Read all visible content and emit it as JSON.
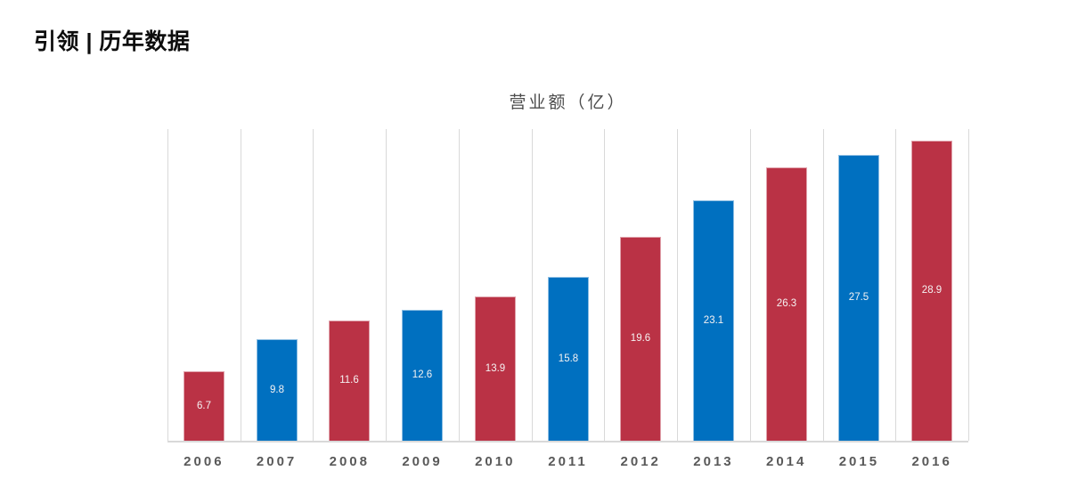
{
  "header": {
    "title": "引领 | 历年数据"
  },
  "chart_data": {
    "type": "bar",
    "title": "营业额（亿）",
    "categories": [
      "2006",
      "2007",
      "2008",
      "2009",
      "2010",
      "2011",
      "2012",
      "2013",
      "2014",
      "2015",
      "2016"
    ],
    "values": [
      6.7,
      9.8,
      11.6,
      12.6,
      13.9,
      15.8,
      19.6,
      23.1,
      26.3,
      27.5,
      28.9
    ],
    "bar_colors": [
      "#ba3245",
      "#0070c0",
      "#ba3245",
      "#0070c0",
      "#ba3245",
      "#0070c0",
      "#ba3245",
      "#0070c0",
      "#ba3245",
      "#0070c0",
      "#ba3245"
    ],
    "ylim": [
      0,
      30
    ],
    "xlabel": "",
    "ylabel": "",
    "legend": "none",
    "grid": "vertical-category-gridlines",
    "gridline_color": "#d9d9d9",
    "axis_line_color": "#d9d9d9",
    "value_label_color": "#f5f2f2",
    "category_label_color": "#595959"
  }
}
